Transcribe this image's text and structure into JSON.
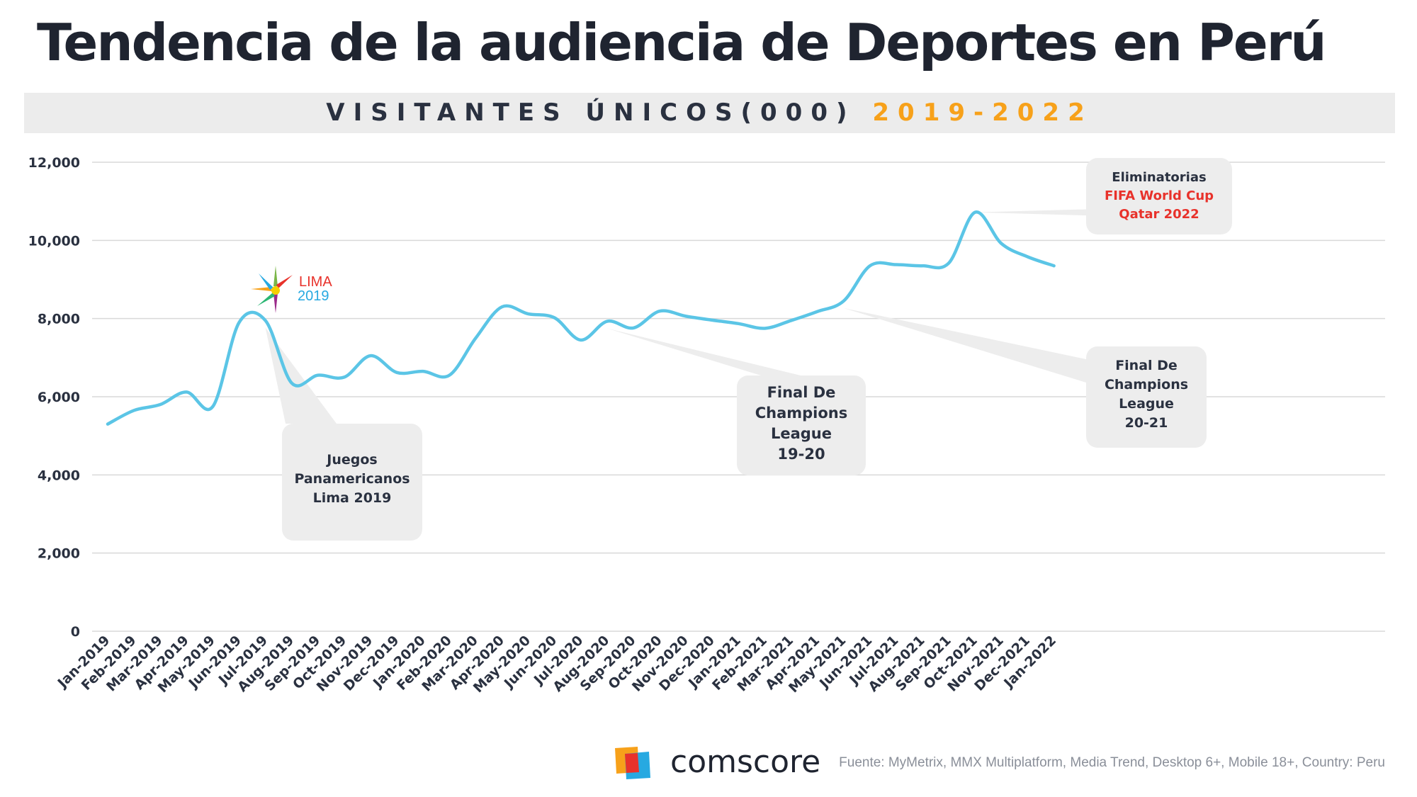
{
  "page": {
    "title": "Tendencia de la audiencia de Deportes en Perú",
    "subtitle_part1": "VISITANTES ÚNICOS(000)",
    "subtitle_part2": "2019-2022",
    "source": "Fuente: MyMetrix, MMX Multiplatform, Media Trend, Desktop 6+, Mobile 18+, Country: Peru",
    "brand": "comscore"
  },
  "colors": {
    "line": "#5bc5e6",
    "title": "#1f2430",
    "accent": "#f7a11a",
    "annotation_red": "#e8322b",
    "callout_bg": "#ededed",
    "grid": "#d9d9d9"
  },
  "lima_logo": {
    "line1": "LIMA",
    "line2": "2019"
  },
  "chart_data": {
    "type": "line",
    "ylim": [
      0,
      12000
    ],
    "yticks": [
      0,
      2000,
      4000,
      6000,
      8000,
      10000,
      12000
    ],
    "ytick_labels": [
      "0",
      "2,000",
      "4,000",
      "6,000",
      "8,000",
      "10,000",
      "12,000"
    ],
    "grid": true,
    "categories": [
      "Jan-2019",
      "Feb-2019",
      "Mar-2019",
      "Apr-2019",
      "May-2019",
      "Jun-2019",
      "Jul-2019",
      "Aug-2019",
      "Sep-2019",
      "Oct-2019",
      "Nov-2019",
      "Dec-2019",
      "Jan-2020",
      "Feb-2020",
      "Mar-2020",
      "Apr-2020",
      "May-2020",
      "Jun-2020",
      "Jul-2020",
      "Aug-2020",
      "Sep-2020",
      "Oct-2020",
      "Nov-2020",
      "Dec-2020",
      "Jan-2021",
      "Feb-2021",
      "Mar-2021",
      "Apr-2021",
      "May-2021",
      "Jun-2021",
      "Jul-2021",
      "Aug-2021",
      "Sep-2021",
      "Oct-2021",
      "Nov-2021",
      "Dec-2021",
      "Jan-2022"
    ],
    "series": [
      {
        "values": [
          5300,
          5650,
          5800,
          6120,
          5750,
          7900,
          7950,
          6350,
          6550,
          6500,
          7050,
          6620,
          6650,
          6550,
          7500,
          8300,
          8120,
          8020,
          7450,
          7930,
          7760,
          8190,
          8060,
          7960,
          7870,
          7750,
          7950,
          8180,
          8450,
          9350,
          9380,
          9350,
          9420,
          10720,
          9920,
          9580,
          9350
        ]
      }
    ],
    "annotations": [
      {
        "target_index": 6,
        "lines": [
          "Juegos",
          "Panamericanos",
          "Lima 2019"
        ]
      },
      {
        "target_index": 19,
        "lines": [
          "Final De",
          "Champions",
          "League",
          "19-20"
        ]
      },
      {
        "target_index": 28,
        "lines": [
          "Final De",
          "Champions",
          "League",
          "20-21"
        ]
      },
      {
        "target_index": 33,
        "lines": [
          "Eliminatorias"
        ],
        "highlight_lines": [
          "FIFA World Cup",
          "Qatar 2022"
        ]
      }
    ]
  }
}
